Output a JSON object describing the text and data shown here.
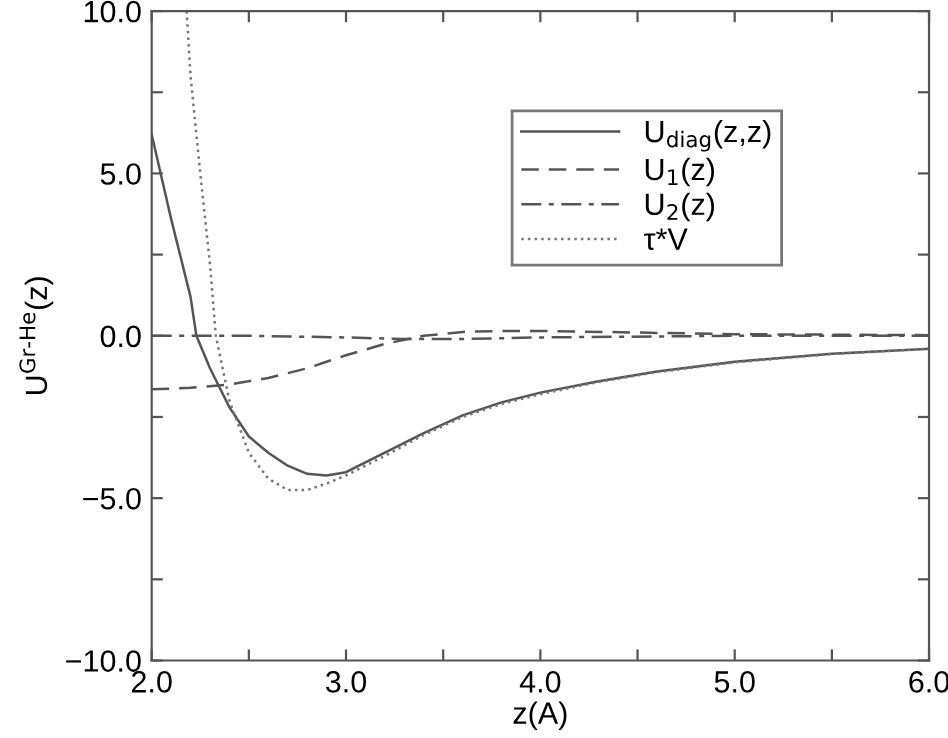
{
  "chart_data": {
    "type": "line",
    "xlabel": "z(A)",
    "ylabel": "U$^{Gr-He}$(z)",
    "xlim": [
      2.0,
      6.0
    ],
    "ylim": [
      -10.0,
      10.0
    ],
    "xticks": [
      {
        "value": 2.0,
        "label": "2.0"
      },
      {
        "value": 2.5,
        "label": null
      },
      {
        "value": 3.0,
        "label": "3.0"
      },
      {
        "value": 3.5,
        "label": null
      },
      {
        "value": 4.0,
        "label": "4.0"
      },
      {
        "value": 4.5,
        "label": null
      },
      {
        "value": 5.0,
        "label": "5.0"
      },
      {
        "value": 5.5,
        "label": null
      },
      {
        "value": 6.0,
        "label": "6.0"
      }
    ],
    "yticks": [
      {
        "value": -10,
        "label": "−10.0"
      },
      {
        "value": -7.5,
        "label": null
      },
      {
        "value": -5,
        "label": "−5.0"
      },
      {
        "value": -2.5,
        "label": null
      },
      {
        "value": 0,
        "label": "0.0"
      },
      {
        "value": 2.5,
        "label": null
      },
      {
        "value": 5,
        "label": "5.0"
      },
      {
        "value": 7.5,
        "label": null
      },
      {
        "value": 10,
        "label": "10.0"
      }
    ],
    "grid": false,
    "legend": "top right",
    "marker": "none",
    "series": [
      {
        "name": "U$_{diag}$(z,z)",
        "color": "#555555",
        "line_style": "solid",
        "x": [
          2.0,
          2.1,
          2.2,
          2.23,
          2.3,
          2.4,
          2.5,
          2.6,
          2.7,
          2.8,
          2.9,
          3.0,
          3.2,
          3.4,
          3.6,
          3.8,
          4.0,
          4.3,
          4.6,
          5.0,
          5.5,
          6.0
        ],
        "values": [
          6.2,
          3.6,
          1.2,
          0,
          -1.0,
          -2.2,
          -3.1,
          -3.6,
          -4.0,
          -4.25,
          -4.3,
          -4.2,
          -3.6,
          -3.0,
          -2.45,
          -2.05,
          -1.75,
          -1.4,
          -1.1,
          -0.8,
          -0.55,
          -0.4
        ]
      },
      {
        "name": "U$_{1}$(z)",
        "color": "#555555",
        "line_style": "dashed",
        "x": [
          2.0,
          2.2,
          2.4,
          2.6,
          2.8,
          3.0,
          3.2,
          3.4,
          3.6,
          3.8,
          4.0,
          4.5,
          5.0,
          6.0
        ],
        "values": [
          -1.65,
          -1.6,
          -1.5,
          -1.3,
          -1.0,
          -0.6,
          -0.25,
          0.0,
          0.12,
          0.15,
          0.15,
          0.1,
          0.05,
          0.02
        ]
      },
      {
        "name": "U$_{2}$(z)",
        "color": "#555555",
        "line_style": "dashdot",
        "x": [
          2.0,
          2.5,
          3.0,
          3.3,
          3.6,
          4.0,
          5.0,
          6.0
        ],
        "values": [
          0,
          0,
          -0.05,
          -0.1,
          -0.1,
          -0.05,
          0,
          0
        ]
      },
      {
        "name": "τ*V",
        "color": "#777777",
        "line_style": "dotted",
        "x": [
          2.18,
          2.2,
          2.25,
          2.3,
          2.33,
          2.4,
          2.5,
          2.6,
          2.7,
          2.8,
          2.9,
          3.0,
          3.2,
          3.4,
          3.6,
          3.8,
          4.0,
          4.3,
          4.6,
          5.0,
          5.5,
          6.0
        ],
        "values": [
          10.0,
          8.0,
          5.0,
          2.2,
          0,
          -2.0,
          -3.6,
          -4.4,
          -4.75,
          -4.75,
          -4.55,
          -4.3,
          -3.7,
          -3.05,
          -2.5,
          -2.1,
          -1.8,
          -1.42,
          -1.12,
          -0.82,
          -0.56,
          -0.4
        ]
      }
    ]
  }
}
